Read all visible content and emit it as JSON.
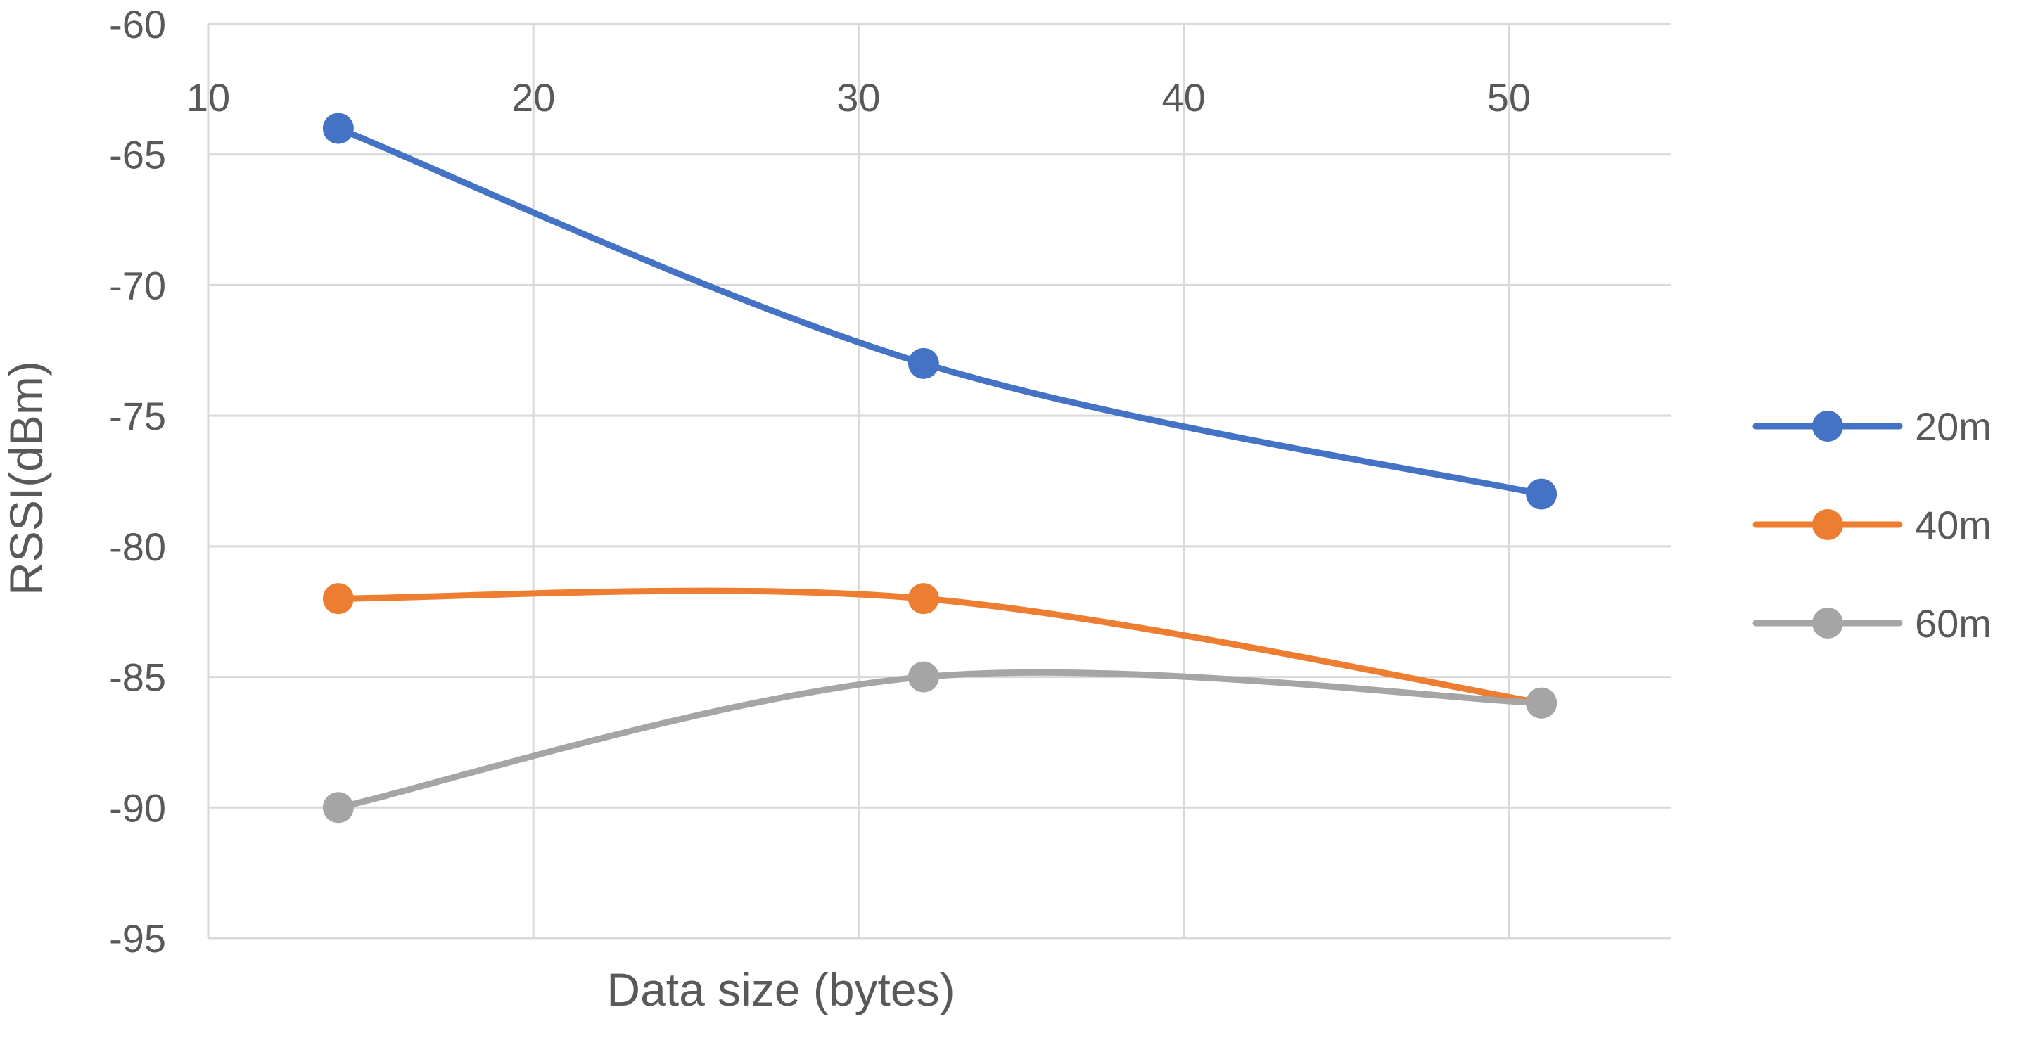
{
  "chart_data": {
    "type": "line",
    "title": "",
    "xlabel": "Data size (bytes)",
    "ylabel": "RSSI(dBm)",
    "xlim": [
      10,
      55
    ],
    "ylim": [
      -95,
      -60
    ],
    "x_ticks": [
      10,
      20,
      30,
      40,
      50
    ],
    "y_ticks": [
      -60,
      -65,
      -70,
      -75,
      -80,
      -85,
      -90,
      -95
    ],
    "x_tick_labels": [
      "10",
      "20",
      "30",
      "40",
      "50"
    ],
    "y_tick_labels": [
      "-60",
      "-65",
      "-70",
      "-75",
      "-80",
      "-85",
      "-90",
      "-95"
    ],
    "x_axis_position": "top",
    "grid": true,
    "smooth": true,
    "legend_position": "right",
    "x": [
      14,
      32,
      51
    ],
    "series": [
      {
        "name": "20m",
        "color": "#4472C4",
        "values": [
          -64,
          -73,
          -78
        ]
      },
      {
        "name": "40m",
        "color": "#ED7D31",
        "values": [
          -82,
          -82,
          -86
        ]
      },
      {
        "name": "60m",
        "color": "#A5A5A5",
        "values": [
          -90,
          -85,
          -86
        ]
      }
    ]
  }
}
